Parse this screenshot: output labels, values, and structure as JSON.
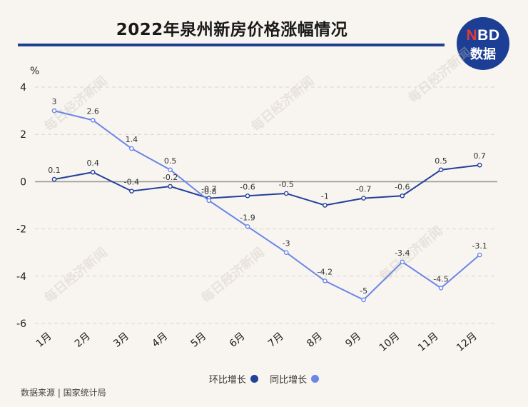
{
  "title": "2022年泉州新房价格涨幅情况",
  "logo": {
    "brand_n": "N",
    "brand_rest": "BD",
    "name": "数据"
  },
  "watermark_text": "每日经济新闻",
  "source": "数据来源 | 国家统计局",
  "colors": {
    "series_mom": "#23409a",
    "series_yoy": "#6b86e8",
    "title_rule": "#1f3f8f",
    "grid": "#d9d4cc"
  },
  "chart_data": {
    "type": "line",
    "categories": [
      "1月",
      "2月",
      "3月",
      "4月",
      "5月",
      "6月",
      "7月",
      "8月",
      "9月",
      "10月",
      "11月",
      "12月"
    ],
    "ylabel": "%",
    "ylim": [
      -6,
      4
    ],
    "yticks": [
      4,
      2,
      0,
      -2,
      -4,
      -6
    ],
    "grid": true,
    "legend_position": "bottom",
    "series": [
      {
        "name": "环比增长",
        "values": [
          0.1,
          0.4,
          -0.4,
          -0.2,
          -0.7,
          -0.6,
          -0.5,
          -1,
          -0.7,
          -0.6,
          0.5,
          0.7
        ]
      },
      {
        "name": "同比增长",
        "values": [
          3,
          2.6,
          1.4,
          0.5,
          -0.8,
          -1.9,
          -3,
          -4.2,
          -5,
          -3.4,
          -4.5,
          -3.1
        ]
      }
    ]
  }
}
